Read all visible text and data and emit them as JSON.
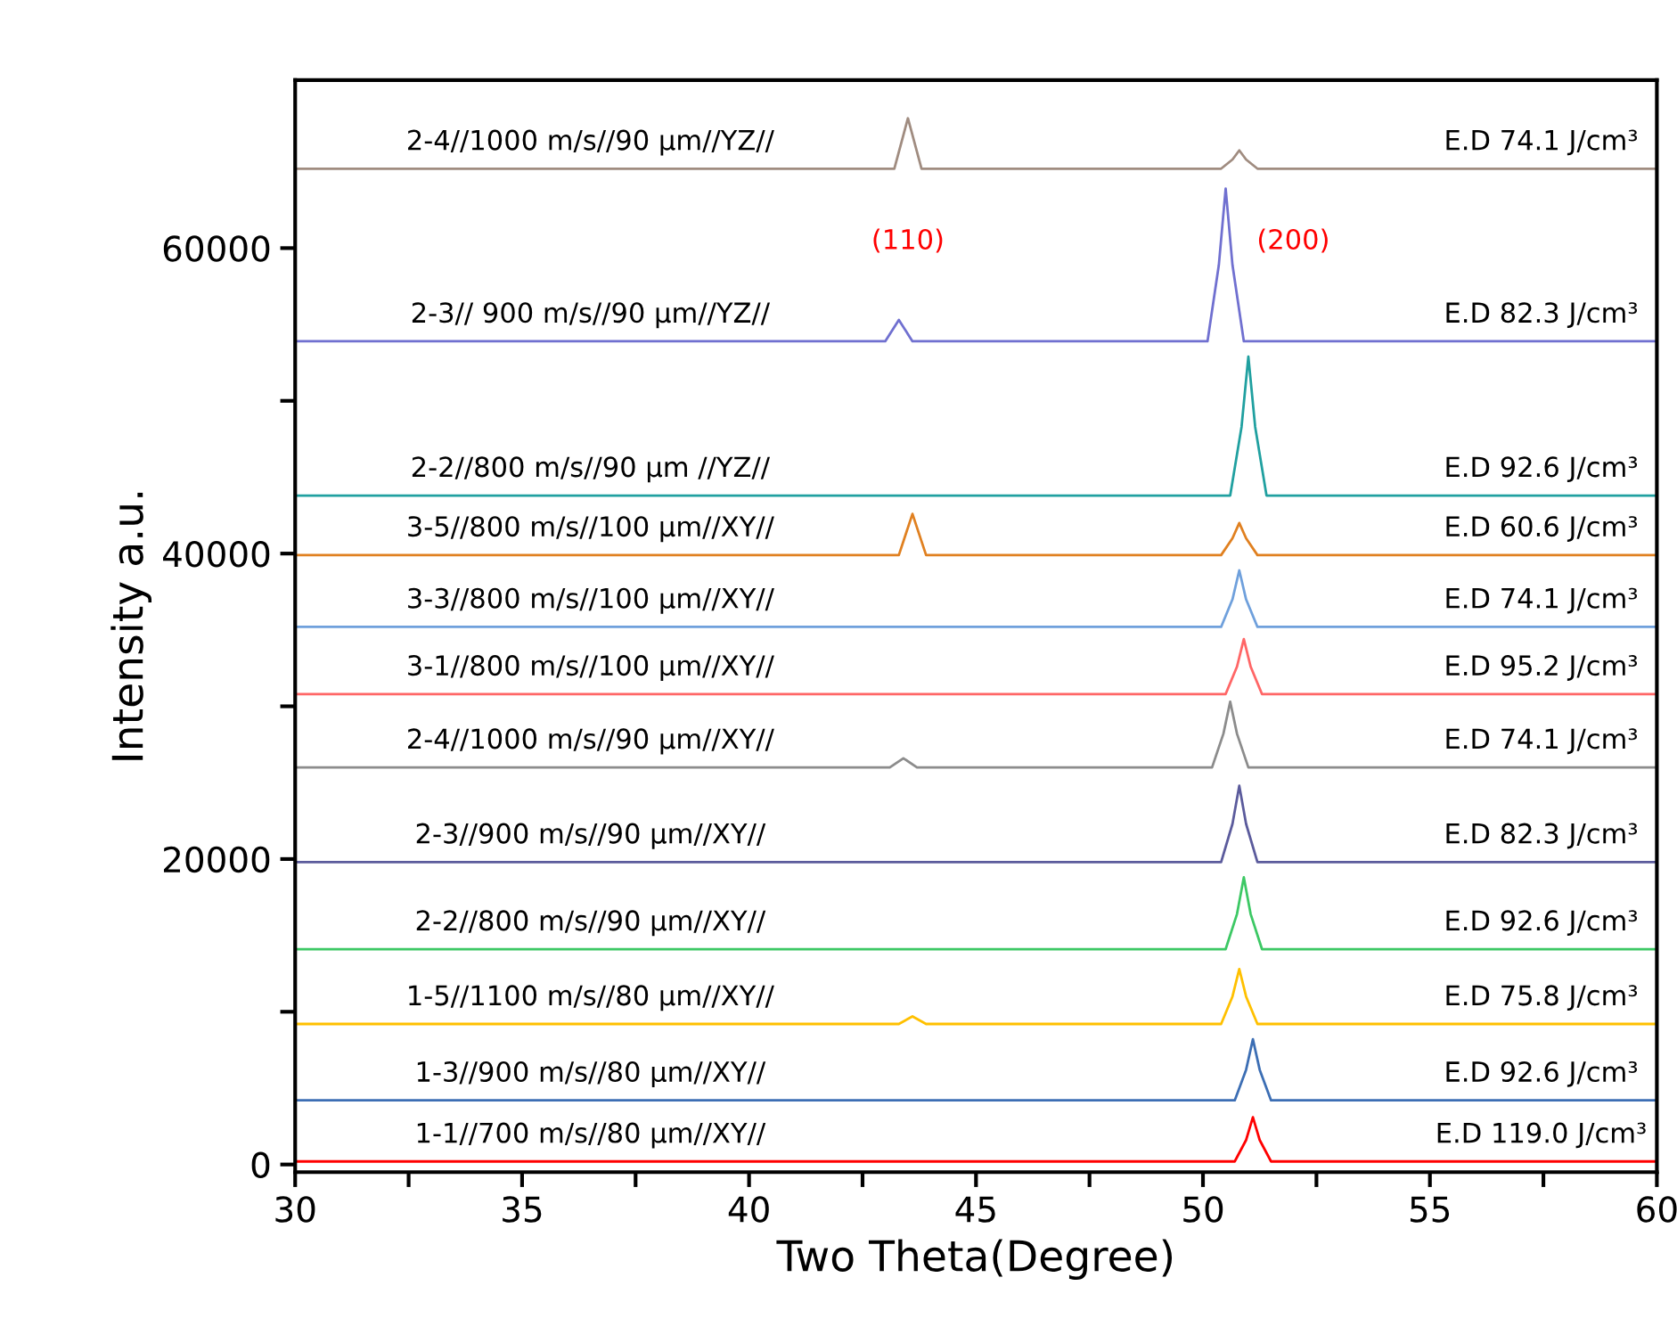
{
  "chart_data": {
    "type": "line",
    "xlabel": "Two Theta(Degree)",
    "ylabel": "Intensity a.u.",
    "xlim": [
      30,
      60
    ],
    "ylim": [
      -500,
      71000
    ],
    "xticks": [
      30,
      {
        "value": 32.5,
        "label": null
      },
      35,
      {
        "value": 37.5,
        "label": null
      },
      40,
      {
        "value": 42.5,
        "label": null
      },
      45,
      {
        "value": 47.5,
        "label": null
      },
      50,
      {
        "value": 52.5,
        "label": null
      },
      55,
      {
        "value": 57.5,
        "label": null
      },
      60
    ],
    "yticks": [
      0,
      {
        "value": 10000,
        "label": null
      },
      20000,
      {
        "value": 30000,
        "label": null
      },
      40000,
      {
        "value": 50000,
        "label": null
      },
      60000
    ],
    "grid": false,
    "legend": false,
    "marker": "none",
    "line_style": "solid",
    "series": [
      {
        "name": "1-1//700 m/s//80 µm//XY//",
        "color": "#ff0000",
        "x": [
          30,
          50.7,
          50.95,
          51.1,
          51.25,
          51.5,
          60
        ],
        "values": [
          200,
          200,
          1600,
          3100,
          1600,
          200,
          200
        ]
      },
      {
        "name": "1-3//900 m/s//80 µm//XY//",
        "color": "#3c6eb4",
        "x": [
          30,
          50.7,
          50.95,
          51.1,
          51.25,
          51.5,
          60
        ],
        "values": [
          4200,
          4200,
          6200,
          8200,
          6200,
          4200,
          4200
        ]
      },
      {
        "name": "1-5//1100 m/s//80 µm//XY//",
        "color": "#ffc000",
        "x": [
          30,
          43.3,
          43.6,
          43.9,
          50.4,
          50.65,
          50.8,
          50.95,
          51.2,
          60
        ],
        "values": [
          9200,
          9200,
          9700,
          9200,
          9200,
          11000,
          12800,
          11000,
          9200,
          9200
        ]
      },
      {
        "name": "2-2//800 m/s//90 µm//XY//",
        "color": "#3cc864",
        "x": [
          30,
          50.5,
          50.75,
          50.9,
          51.05,
          51.3,
          60
        ],
        "values": [
          14100,
          14100,
          16400,
          18800,
          16400,
          14100,
          14100
        ]
      },
      {
        "name": "2-3//900 m/s//90 µm//XY//",
        "color": "#5b5b9c",
        "x": [
          30,
          50.4,
          50.65,
          50.8,
          50.95,
          51.2,
          60
        ],
        "values": [
          19800,
          19800,
          22300,
          24800,
          22300,
          19800,
          19800
        ]
      },
      {
        "name": "2-4//1000 m/s//90 µm//XY//",
        "color": "#8c8c8c",
        "x": [
          30,
          43.1,
          43.4,
          43.7,
          50.2,
          50.45,
          50.6,
          50.75,
          51.0,
          60
        ],
        "values": [
          26000,
          26000,
          26600,
          26000,
          26000,
          28200,
          30300,
          28200,
          26000,
          26000
        ]
      },
      {
        "name": "3-1//800 m/s//100 µm//XY//",
        "color": "#ff6666",
        "x": [
          30,
          50.5,
          50.75,
          50.9,
          51.05,
          51.3,
          60
        ],
        "values": [
          30800,
          30800,
          32600,
          34400,
          32600,
          30800,
          30800
        ]
      },
      {
        "name": "3-3//800 m/s//100 µm//XY//",
        "color": "#6fa0dc",
        "x": [
          30,
          50.4,
          50.65,
          50.8,
          50.95,
          51.2,
          60
        ],
        "values": [
          35200,
          35200,
          37000,
          38900,
          37000,
          35200,
          35200
        ]
      },
      {
        "name": "3-5//800 m/s//100 µm//XY//",
        "color": "#e08020",
        "x": [
          30,
          43.3,
          43.6,
          43.9,
          50.4,
          50.65,
          50.8,
          50.95,
          51.2,
          60
        ],
        "values": [
          39900,
          39900,
          42600,
          39900,
          39900,
          41000,
          42000,
          41000,
          39900,
          39900
        ]
      },
      {
        "name": "2-2//800 m/s//90 µm //YZ//",
        "color": "#20a0a0",
        "x": [
          30,
          50.6,
          50.85,
          51.0,
          51.15,
          51.4,
          60
        ],
        "values": [
          43800,
          43800,
          48300,
          52900,
          48300,
          43800,
          43800
        ]
      },
      {
        "name": "2-3// 900 m/s//90 µm//YZ//",
        "color": "#7070d0",
        "x": [
          30,
          43.0,
          43.3,
          43.6,
          50.1,
          50.35,
          50.5,
          50.65,
          50.9,
          60
        ],
        "values": [
          53900,
          53900,
          55300,
          53900,
          53900,
          58900,
          63900,
          58900,
          53900,
          53900
        ]
      },
      {
        "name": "2-4//1000 m/s//90 µm//YZ//",
        "color": "#a08c80",
        "x": [
          30,
          43.2,
          43.5,
          43.8,
          50.4,
          50.65,
          50.8,
          50.95,
          51.2,
          60
        ],
        "values": [
          65200,
          65200,
          68500,
          65200,
          65200,
          65800,
          66400,
          65800,
          65200,
          65200
        ]
      }
    ],
    "annotations": [
      "E.D 119.0 J/cm³",
      "E.D 92.6 J/cm³",
      "E.D 75.8 J/cm³",
      "E.D 92.6 J/cm³",
      "E.D 82.3 J/cm³",
      "E.D 74.1 J/cm³",
      "E.D 95.2 J/cm³",
      "E.D 74.1 J/cm³",
      "E.D 60.6 J/cm³",
      "E.D 92.6 J/cm³",
      "E.D 82.3 J/cm³",
      "E.D 74.1 J/cm³",
      "(110)",
      "(200)"
    ]
  }
}
